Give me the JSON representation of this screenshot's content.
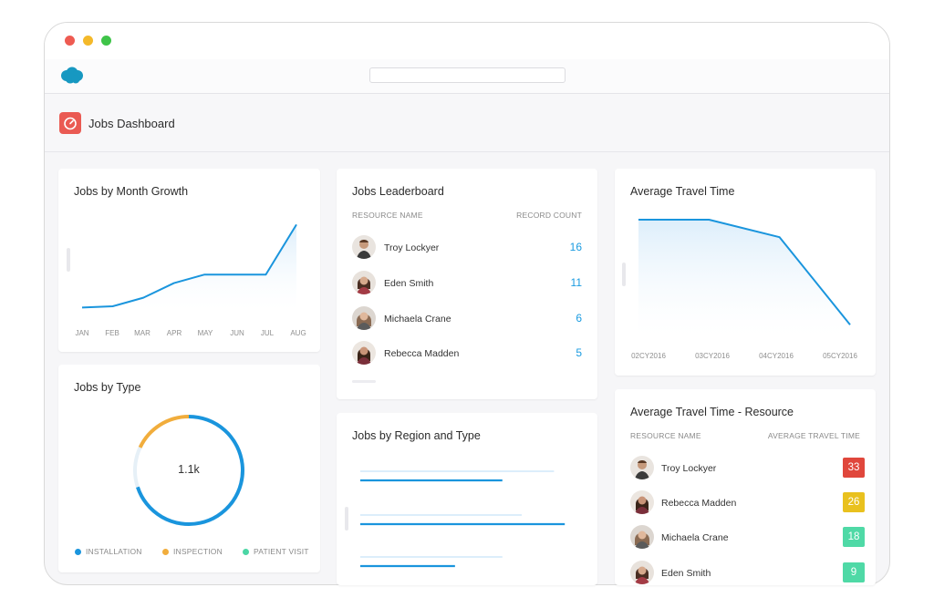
{
  "app": {
    "title": "Jobs Dashboard",
    "search": {
      "value": "",
      "placeholder": ""
    },
    "logo": "salesforce-cloud-logo",
    "brand_color": "#1798c1",
    "dash_icon": "speedometer-icon",
    "dash_icon_color": "#ea5a53"
  },
  "cards": {
    "jobs_by_month": {
      "title": "Jobs by Month Growth",
      "x_labels": [
        "JAN",
        "FEB",
        "MAR",
        "APR",
        "MAY",
        "JUN",
        "JUL",
        "AUG"
      ]
    },
    "leaderboard": {
      "title": "Jobs Leaderboard",
      "col_name": "RESOURCE NAME",
      "col_count": "RECORD COUNT",
      "rows": [
        {
          "name": "Troy Lockyer",
          "count": "16"
        },
        {
          "name": "Eden Smith",
          "count": "11"
        },
        {
          "name": "Michaela Crane",
          "count": "6"
        },
        {
          "name": "Rebecca Madden",
          "count": "5"
        }
      ]
    },
    "avg_travel": {
      "title": "Average Travel Time",
      "x_labels": [
        "02CY2016",
        "03CY2016",
        "04CY2016",
        "05CY2016"
      ]
    },
    "jobs_by_type": {
      "title": "Jobs by Type",
      "center_value": "1.1k",
      "legend": [
        {
          "label": "INSTALLATION",
          "color": "#1a95dd"
        },
        {
          "label": "INSPECTION",
          "color": "#f1ad3c"
        },
        {
          "label": "PATIENT VISIT",
          "color": "#4bd6a5"
        }
      ]
    },
    "region_type": {
      "title": "Jobs by Region and Type"
    },
    "avg_travel_resource": {
      "title": "Average Travel Time - Resource",
      "col_name": "RESOURCE NAME",
      "col_value": "AVERAGE TRAVEL TIME",
      "rows": [
        {
          "name": "Troy Lockyer",
          "value": "33",
          "color": "#e0473c"
        },
        {
          "name": "Rebecca Madden",
          "value": "26",
          "color": "#e9c11e"
        },
        {
          "name": "Michaela Crane",
          "value": "18",
          "color": "#4fd9a6"
        },
        {
          "name": "Eden Smith",
          "value": "9",
          "color": "#4fd9a6"
        }
      ]
    }
  },
  "chart_data": [
    {
      "type": "area",
      "title": "Jobs by Month Growth",
      "categories": [
        "JAN",
        "FEB",
        "MAR",
        "APR",
        "MAY",
        "JUN",
        "JUL",
        "AUG"
      ],
      "values": [
        2,
        3,
        10,
        22,
        29,
        29,
        29,
        70
      ],
      "ylim": [
        0,
        80
      ],
      "grid": false
    },
    {
      "type": "area",
      "title": "Average Travel Time",
      "categories": [
        "02CY2016",
        "03CY2016",
        "04CY2016",
        "05CY2016"
      ],
      "values": [
        100,
        100,
        85,
        10
      ],
      "ylim": [
        0,
        100
      ],
      "grid": false
    },
    {
      "type": "pie",
      "title": "Jobs by Type",
      "categories": [
        "INSTALLATION",
        "INSPECTION",
        "PATIENT VISIT"
      ],
      "values": [
        70,
        18,
        12
      ]
    },
    {
      "type": "bar",
      "title": "Jobs by Region and Type",
      "series": [
        {
          "values": [
            0.66,
            0.95,
            0.44
          ]
        },
        {
          "values": [
            0.9,
            0.75,
            0.66
          ]
        }
      ]
    }
  ]
}
